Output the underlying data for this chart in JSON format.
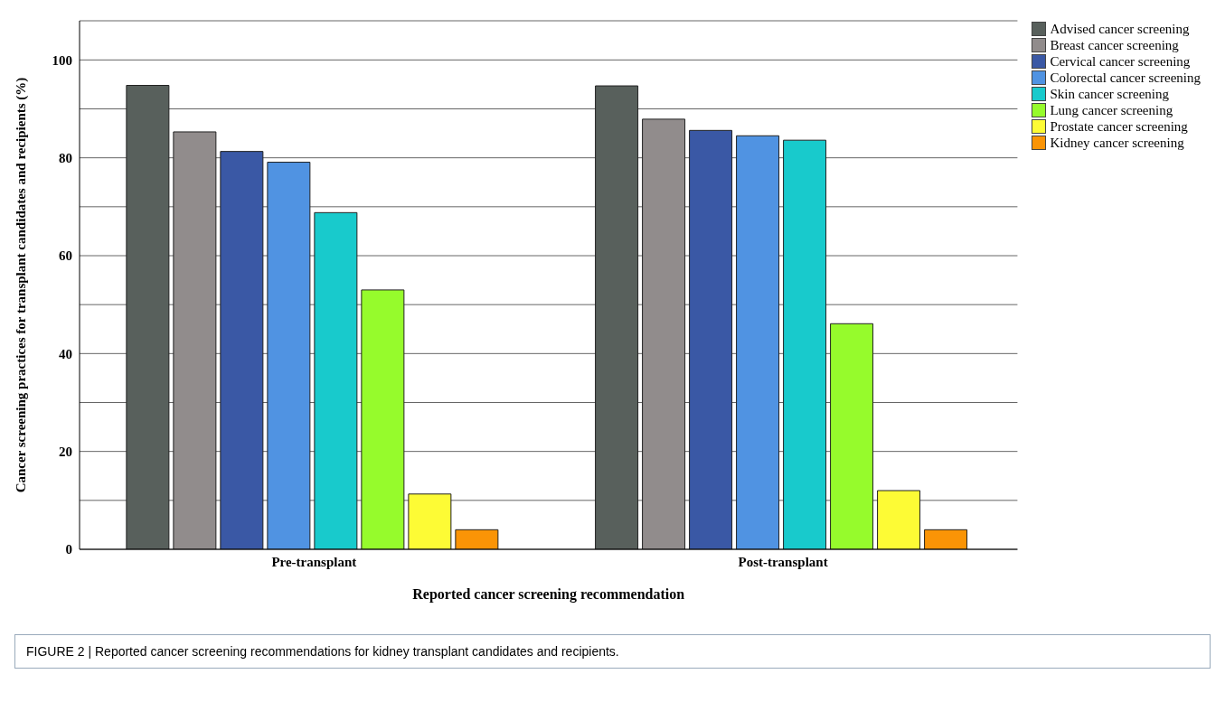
{
  "chart_data": {
    "type": "bar",
    "xlabel": "Reported cancer screening recommendation",
    "ylabel": "Cancer screening practices for transplant candidates and recipients (%)",
    "categories": [
      "Pre-transplant",
      "Post-transplant"
    ],
    "series": [
      {
        "name": "Advised cancer screening",
        "color": "#58605c",
        "values": [
          94.8,
          94.7
        ]
      },
      {
        "name": "Breast cancer screening",
        "color": "#918c8c",
        "values": [
          85.3,
          87.9
        ]
      },
      {
        "name": "Cervical cancer screening",
        "color": "#3a58a5",
        "values": [
          81.3,
          85.6
        ]
      },
      {
        "name": "Colorectal cancer screening",
        "color": "#5093e2",
        "values": [
          79.1,
          84.5
        ]
      },
      {
        "name": "Skin cancer screening",
        "color": "#18cacc",
        "values": [
          68.8,
          83.6
        ]
      },
      {
        "name": "Lung cancer screening",
        "color": "#96fb2c",
        "values": [
          53.0,
          46.1
        ]
      },
      {
        "name": "Prostate cancer screening",
        "color": "#fdfb35",
        "values": [
          11.3,
          12.0
        ]
      },
      {
        "name": "Kidney cancer screening",
        "color": "#fa9406",
        "values": [
          4.0,
          4.0
        ]
      }
    ],
    "ylim": [
      0,
      108
    ],
    "yticks": [
      0,
      {
        "value": 10,
        "label": null
      },
      20,
      {
        "value": 30,
        "label": null
      },
      40,
      {
        "value": 50,
        "label": null
      },
      60,
      {
        "value": 70,
        "label": null
      },
      80,
      {
        "value": 90,
        "label": null
      },
      100
    ],
    "grid": "y",
    "legend": "top right",
    "annotations": [
      "FIGURE 2 | Reported cancer screening recommendations for kidney transplant candidates and recipients."
    ]
  }
}
